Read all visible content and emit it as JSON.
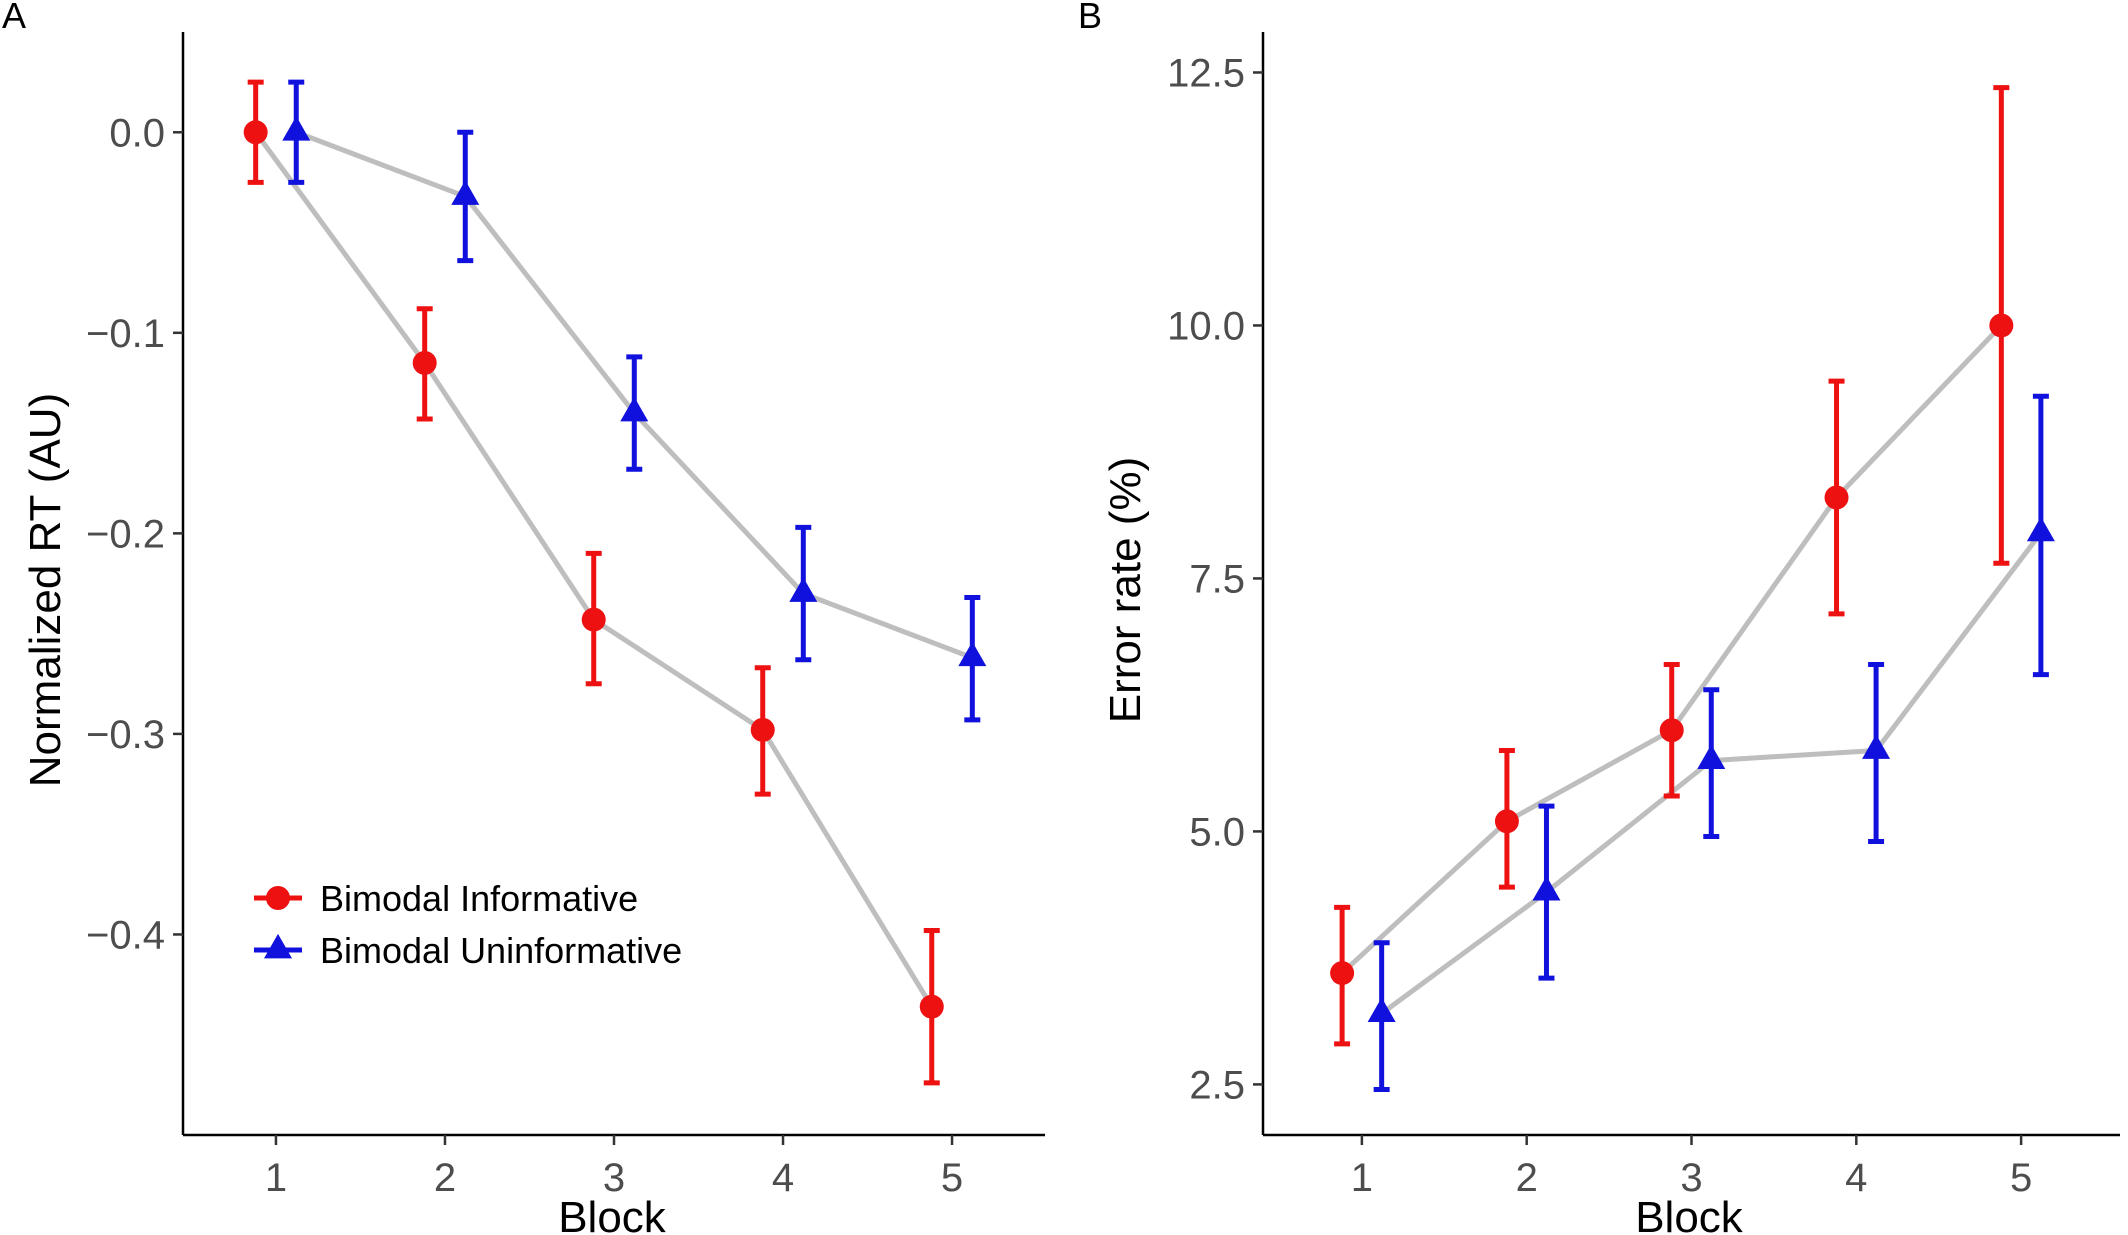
{
  "panel_labels": [
    "A",
    "B"
  ],
  "colors": {
    "informative": "#ee1111",
    "uninformative": "#1111dd",
    "connector": "#bebebe"
  },
  "chart_data": [
    {
      "type": "line",
      "panel": "A",
      "xlabel": "Block",
      "ylabel": "Normalized RT (AU)",
      "x": [
        1,
        2,
        3,
        4,
        5
      ],
      "x_ticks": [
        "1",
        "2",
        "3",
        "4",
        "5"
      ],
      "xlim": [
        0.45,
        5.55
      ],
      "ylim": [
        -0.5,
        0.05
      ],
      "y_ticks": [
        0.0,
        -0.1,
        -0.2,
        -0.3,
        -0.4
      ],
      "y_tick_labels": [
        "0.0",
        "−0.1",
        "−0.2",
        "−0.3",
        "−0.4"
      ],
      "grid": false,
      "legend": {
        "position": "bottom-left",
        "entries": [
          "Bimodal Informative",
          "Bimodal Uninformative"
        ]
      },
      "series": [
        {
          "name": "Bimodal Informative",
          "marker": "circle",
          "dodge": -0.12,
          "values": [
            0.0,
            -0.115,
            -0.243,
            -0.298,
            -0.436
          ],
          "err_low": [
            -0.025,
            -0.143,
            -0.275,
            -0.33,
            -0.474
          ],
          "err_high": [
            0.025,
            -0.088,
            -0.21,
            -0.267,
            -0.398
          ]
        },
        {
          "name": "Bimodal Uninformative",
          "marker": "triangle",
          "dodge": 0.12,
          "values": [
            0.0,
            -0.032,
            -0.14,
            -0.23,
            -0.262
          ],
          "err_low": [
            -0.025,
            -0.064,
            -0.168,
            -0.263,
            -0.293
          ],
          "err_high": [
            0.025,
            0.0,
            -0.112,
            -0.197,
            -0.232
          ]
        }
      ]
    },
    {
      "type": "line",
      "panel": "B",
      "xlabel": "Block",
      "ylabel": "Error rate (%)",
      "x": [
        1,
        2,
        3,
        4,
        5
      ],
      "x_ticks": [
        "1",
        "2",
        "3",
        "4",
        "5"
      ],
      "xlim": [
        0.4,
        5.6
      ],
      "ylim": [
        2.0,
        12.9
      ],
      "y_ticks": [
        2.5,
        5.0,
        7.5,
        10.0,
        12.5
      ],
      "y_tick_labels": [
        "2.5",
        "5.0",
        "7.5",
        "10.0",
        "12.5"
      ],
      "grid": false,
      "series": [
        {
          "name": "Bimodal Informative",
          "marker": "circle",
          "dodge": -0.12,
          "values": [
            3.6,
            5.1,
            6.0,
            8.3,
            10.0
          ],
          "err_low": [
            2.9,
            4.45,
            5.35,
            7.15,
            7.65
          ],
          "err_high": [
            4.25,
            5.8,
            6.65,
            9.45,
            12.35
          ]
        },
        {
          "name": "Bimodal Uninformative",
          "marker": "triangle",
          "dodge": 0.12,
          "values": [
            3.2,
            4.4,
            5.7,
            5.8,
            7.95
          ],
          "err_low": [
            2.45,
            3.55,
            4.95,
            4.9,
            6.55
          ],
          "err_high": [
            3.9,
            5.25,
            6.4,
            6.65,
            9.3
          ]
        }
      ]
    }
  ]
}
